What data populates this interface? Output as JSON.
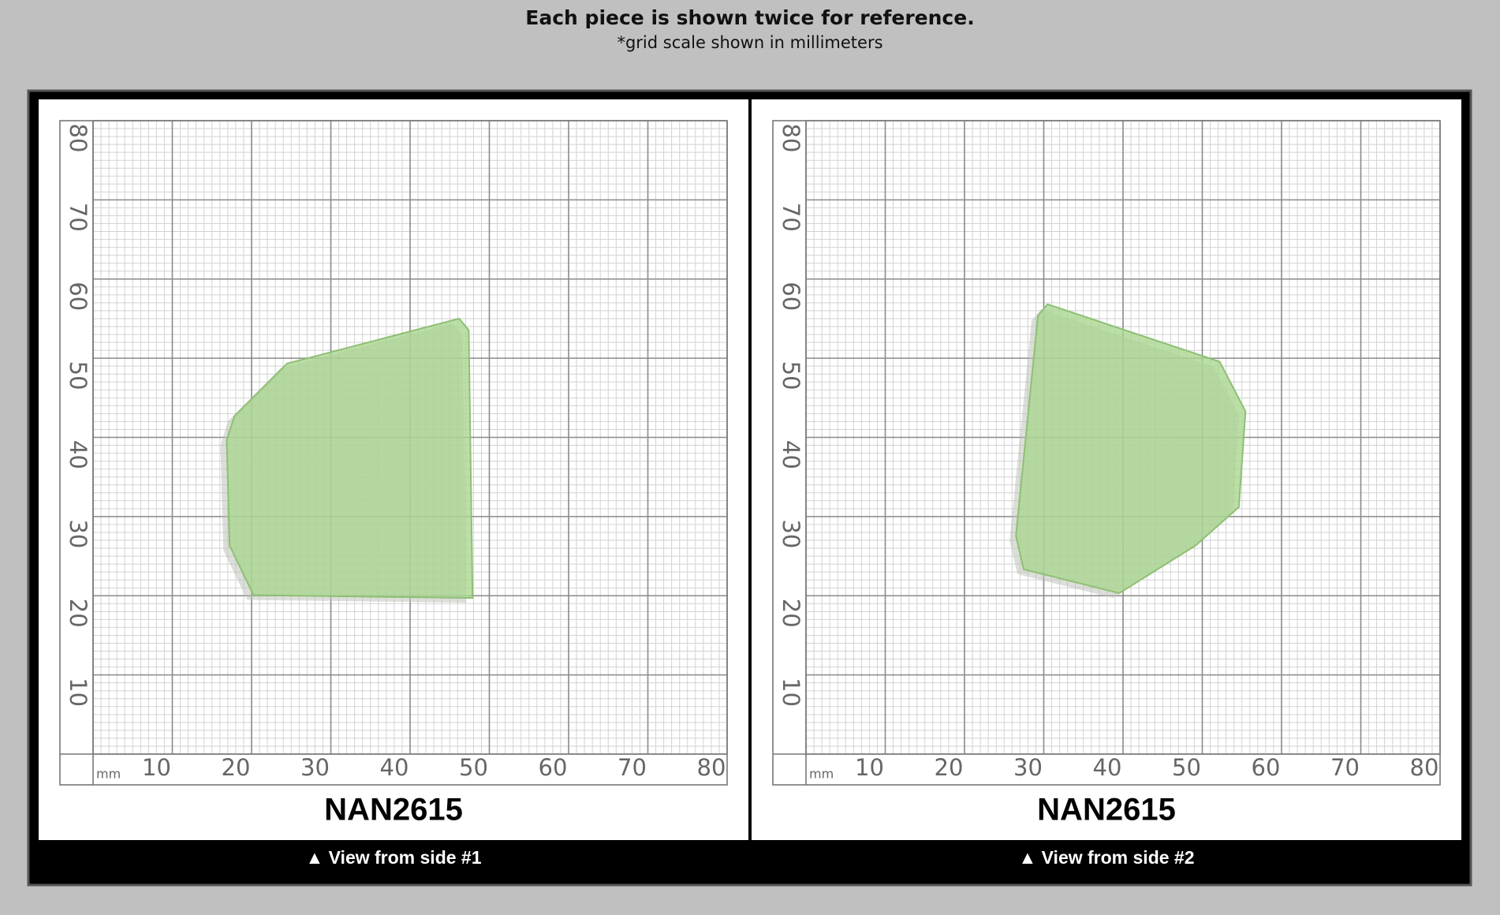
{
  "header": {
    "title": "Each piece is shown twice for reference.",
    "subtitle": "*grid scale shown in millimeters"
  },
  "panels": [
    {
      "code": "NAN2615",
      "caption": "▲ View from side #1",
      "grid": {
        "unit": "mm",
        "x_labels": [
          10,
          20,
          30,
          40,
          50,
          60,
          70,
          80
        ],
        "y_labels": [
          10,
          20,
          30,
          40,
          50,
          60,
          70,
          80
        ]
      }
    },
    {
      "code": "NAN2615",
      "caption": "▲ View from side #2",
      "grid": {
        "unit": "mm",
        "x_labels": [
          10,
          20,
          30,
          40,
          50,
          60,
          70,
          80
        ],
        "y_labels": [
          10,
          20,
          30,
          40,
          50,
          60,
          70,
          80
        ]
      }
    }
  ]
}
